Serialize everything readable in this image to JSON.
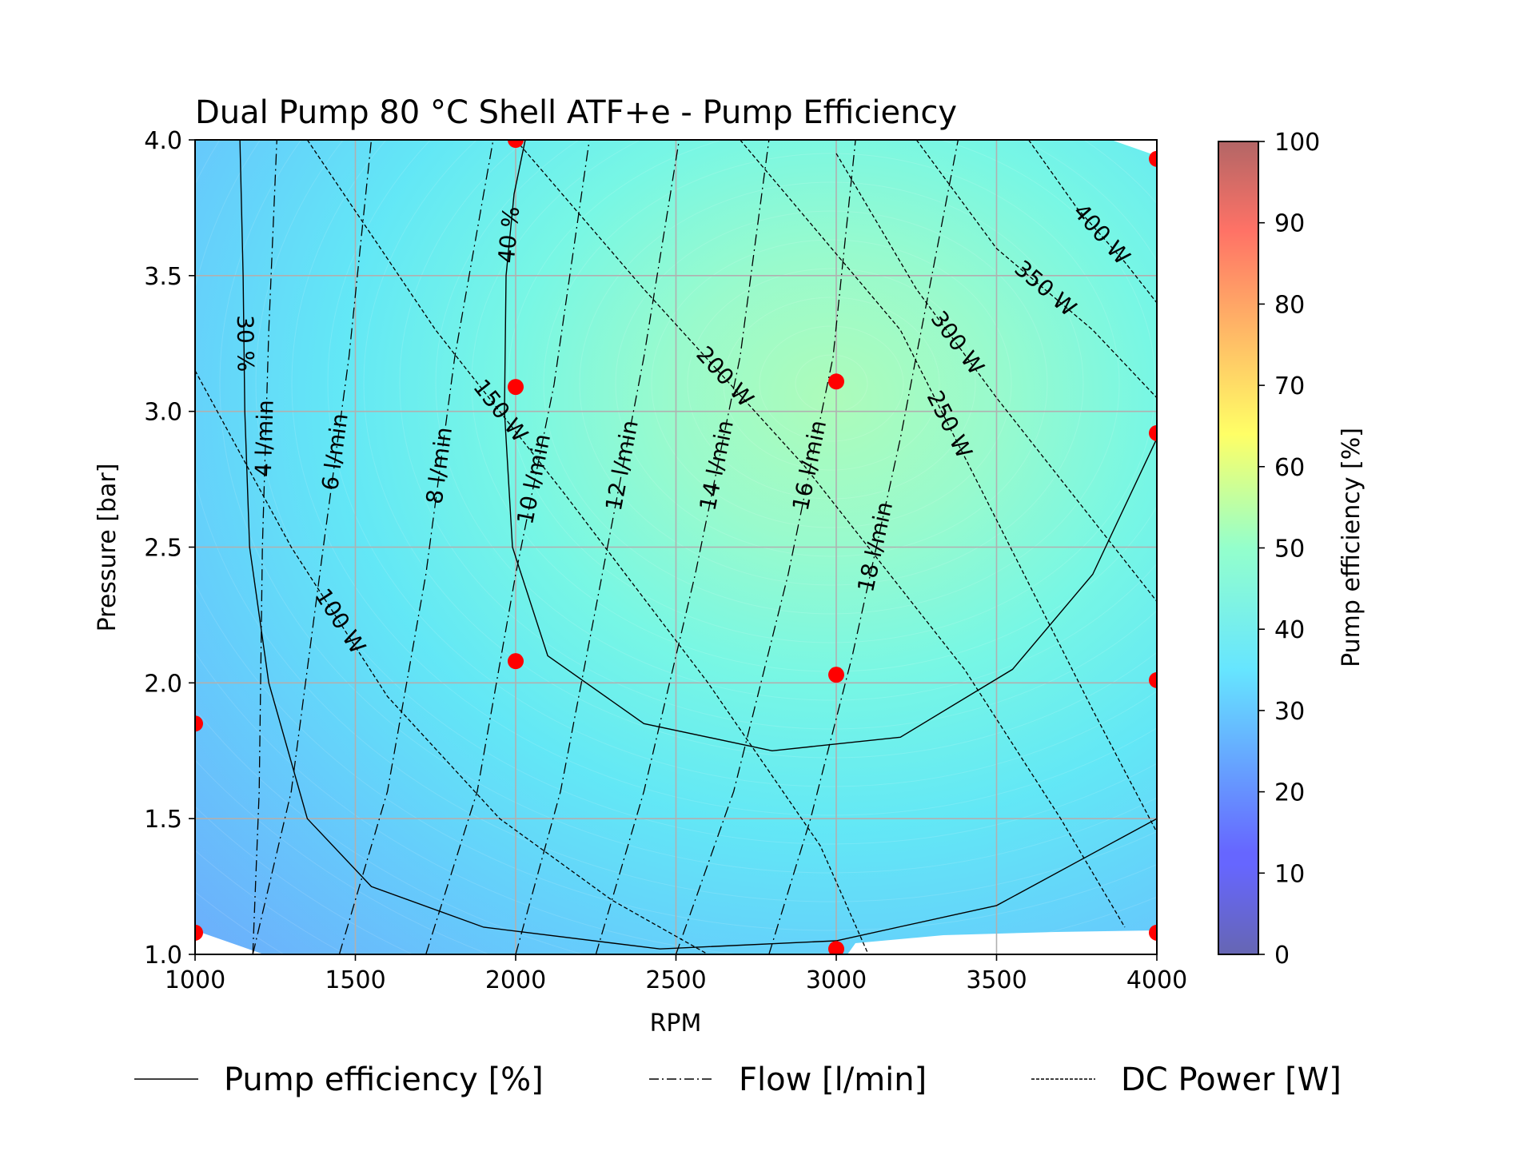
{
  "chart_data": {
    "type": "contour",
    "title": "Dual Pump 80 °C Shell ATF+e - Pump Efficiency",
    "xlabel": "RPM",
    "ylabel": "Pressure [bar]",
    "xlim": [
      1000,
      4000
    ],
    "ylim": [
      1.0,
      4.0
    ],
    "xticks": [
      1000,
      1500,
      2000,
      2500,
      3000,
      3500,
      4000
    ],
    "yticks": [
      1.0,
      1.5,
      2.0,
      2.5,
      3.0,
      3.5,
      4.0
    ],
    "xtick_labels": [
      "1000",
      "1500",
      "2000",
      "2500",
      "3000",
      "3500",
      "4000"
    ],
    "ytick_labels": [
      "1.0",
      "1.5",
      "2.0",
      "2.5",
      "3.0",
      "3.5",
      "4.0"
    ],
    "grid": true,
    "colorbar": {
      "label": "Pump efficiency [%]",
      "range": [
        0,
        100
      ],
      "ticks": [
        0,
        10,
        20,
        30,
        40,
        50,
        60,
        70,
        80,
        90,
        100
      ],
      "tick_labels": [
        "0",
        "10",
        "20",
        "30",
        "40",
        "50",
        "60",
        "70",
        "80",
        "90",
        "100"
      ],
      "colormap": "jet"
    },
    "measured_points": [
      {
        "x": 1000,
        "y": 1.08
      },
      {
        "x": 1000,
        "y": 1.85
      },
      {
        "x": 2000,
        "y": 4.0
      },
      {
        "x": 2000,
        "y": 3.09
      },
      {
        "x": 2000,
        "y": 2.08
      },
      {
        "x": 3000,
        "y": 3.11
      },
      {
        "x": 3000,
        "y": 2.03
      },
      {
        "x": 3000,
        "y": 1.02
      },
      {
        "x": 4000,
        "y": 3.93
      },
      {
        "x": 4000,
        "y": 2.92
      },
      {
        "x": 4000,
        "y": 2.01
      },
      {
        "x": 4000,
        "y": 1.08
      }
    ],
    "point_color": "#ff0000",
    "efficiency_contours": [
      {
        "label": "30 %",
        "points": [
          [
            1140,
            4.0
          ],
          [
            1150,
            3.5
          ],
          [
            1155,
            3.0
          ],
          [
            1170,
            2.5
          ],
          [
            1230,
            2.0
          ],
          [
            1350,
            1.5
          ],
          [
            1550,
            1.25
          ],
          [
            1900,
            1.1
          ],
          [
            2450,
            1.02
          ],
          [
            3000,
            1.05
          ],
          [
            3500,
            1.18
          ],
          [
            4000,
            1.5
          ]
        ]
      },
      {
        "label": "40 %",
        "points": [
          [
            2030,
            4.0
          ],
          [
            1995,
            3.8
          ],
          [
            1970,
            3.5
          ],
          [
            1965,
            3.0
          ],
          [
            1990,
            2.5
          ],
          [
            2100,
            2.1
          ],
          [
            2400,
            1.85
          ],
          [
            2800,
            1.75
          ],
          [
            3200,
            1.8
          ],
          [
            3550,
            2.05
          ],
          [
            3800,
            2.4
          ],
          [
            4000,
            2.9
          ]
        ]
      }
    ],
    "flow_contours": [
      {
        "label": "4 l/min",
        "points": [
          [
            1180,
            1.0
          ],
          [
            1200,
            1.6
          ],
          [
            1210,
            2.5
          ],
          [
            1230,
            3.3
          ],
          [
            1255,
            4.0
          ]
        ]
      },
      {
        "label": "6 l/min",
        "points": [
          [
            1180,
            1.0
          ],
          [
            1300,
            1.6
          ],
          [
            1400,
            2.5
          ],
          [
            1480,
            3.2
          ],
          [
            1550,
            4.0
          ]
        ]
      },
      {
        "label": "8 l/min",
        "points": [
          [
            1450,
            1.0
          ],
          [
            1600,
            1.6
          ],
          [
            1720,
            2.4
          ],
          [
            1810,
            3.2
          ],
          [
            1930,
            4.0
          ]
        ]
      },
      {
        "label": "10 l/min",
        "points": [
          [
            1720,
            1.0
          ],
          [
            1880,
            1.6
          ],
          [
            2000,
            2.4
          ],
          [
            2120,
            3.1
          ],
          [
            2230,
            4.0
          ]
        ]
      },
      {
        "label": "12 l/min",
        "points": [
          [
            2000,
            1.0
          ],
          [
            2140,
            1.6
          ],
          [
            2270,
            2.4
          ],
          [
            2400,
            3.2
          ],
          [
            2510,
            4.0
          ]
        ]
      },
      {
        "label": "14 l/min",
        "points": [
          [
            2250,
            1.0
          ],
          [
            2400,
            1.6
          ],
          [
            2560,
            2.4
          ],
          [
            2700,
            3.2
          ],
          [
            2790,
            4.0
          ]
        ]
      },
      {
        "label": "16 l/min",
        "points": [
          [
            2500,
            1.0
          ],
          [
            2680,
            1.6
          ],
          [
            2850,
            2.4
          ],
          [
            2990,
            3.2
          ],
          [
            3060,
            4.0
          ]
        ]
      },
      {
        "label": "18 l/min",
        "points": [
          [
            2790,
            1.0
          ],
          [
            2920,
            1.5
          ],
          [
            3050,
            2.1
          ],
          [
            3200,
            2.9
          ],
          [
            3380,
            4.0
          ]
        ]
      }
    ],
    "power_contours": [
      {
        "label": "100 W",
        "points": [
          [
            1000,
            3.15
          ],
          [
            1300,
            2.5
          ],
          [
            1600,
            1.95
          ],
          [
            1950,
            1.5
          ],
          [
            2300,
            1.2
          ],
          [
            2600,
            1.0
          ]
        ]
      },
      {
        "label": "150 W",
        "points": [
          [
            1350,
            4.0
          ],
          [
            1750,
            3.3
          ],
          [
            2150,
            2.7
          ],
          [
            2600,
            2.0
          ],
          [
            2950,
            1.4
          ],
          [
            3100,
            1.0
          ]
        ]
      },
      {
        "label": "200 W",
        "points": [
          [
            2000,
            4.0
          ],
          [
            2400,
            3.45
          ],
          [
            2900,
            2.8
          ],
          [
            3400,
            2.05
          ],
          [
            3700,
            1.5
          ],
          [
            3900,
            1.1
          ]
        ]
      },
      {
        "label": "250 W",
        "points": [
          [
            2700,
            4.0
          ],
          [
            3200,
            3.3
          ],
          [
            3500,
            2.6
          ],
          [
            3800,
            1.9
          ],
          [
            4000,
            1.45
          ]
        ]
      },
      {
        "label": "300 W",
        "points": [
          [
            3000,
            3.95
          ],
          [
            3250,
            3.45
          ],
          [
            3500,
            3.05
          ],
          [
            3800,
            2.6
          ],
          [
            4000,
            2.3
          ]
        ]
      },
      {
        "label": "350 W",
        "points": [
          [
            3250,
            4.0
          ],
          [
            3500,
            3.6
          ],
          [
            3800,
            3.3
          ],
          [
            4000,
            3.05
          ]
        ]
      },
      {
        "label": "400 W",
        "points": [
          [
            3600,
            4.0
          ],
          [
            3750,
            3.75
          ],
          [
            3900,
            3.55
          ],
          [
            4000,
            3.4
          ]
        ]
      }
    ]
  },
  "legend": {
    "items": [
      {
        "label": "Pump efficiency [%]",
        "style": "solid"
      },
      {
        "label": "Flow [l/min]",
        "style": "dashdot"
      },
      {
        "label": "DC Power [W]",
        "style": "dashed"
      }
    ]
  },
  "colors": {
    "contour_line": "#000000",
    "grid": "#b0b0b0",
    "axis": "#000000"
  }
}
